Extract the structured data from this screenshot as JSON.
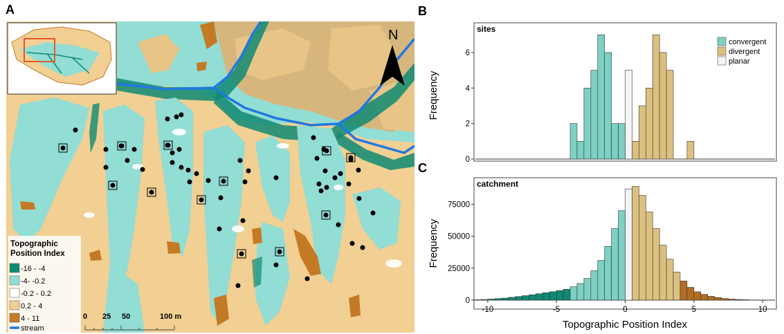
{
  "panels": {
    "a": "A",
    "b": "B",
    "c": "C"
  },
  "map": {
    "north_label": "N",
    "legend": {
      "title_line1": "Topographic",
      "title_line2": "Position Index",
      "items": [
        {
          "label": "-16 - -4",
          "color": "#0f8a73"
        },
        {
          "label": "-4- -0.2",
          "color": "#92ddd4"
        },
        {
          "label": "-0.2 - 0.2",
          "color": "#ffffff"
        },
        {
          "label": "0.2 - 4",
          "color": "#f2cf93"
        },
        {
          "label": "4 - 11",
          "color": "#c47a24"
        }
      ],
      "stream_label": "stream",
      "stream_color": "#1f78e0"
    },
    "scale_bar": {
      "labels": [
        "0",
        "25",
        "50",
        "100 m"
      ]
    }
  },
  "colors": {
    "convergent": "#7dd0c4",
    "divergent": "#dcc07f",
    "planar": "#f4f4f4",
    "deep_convergent": "#0f8a73",
    "strong_divergent": "#b06d23"
  },
  "chart_data": [
    {
      "type": "bar",
      "title": "sites",
      "ylabel": "Frequency",
      "xlim": [
        -11,
        11
      ],
      "ylim": [
        0,
        7.4
      ],
      "yticks": [
        0,
        2,
        4,
        6
      ],
      "bin_width": 0.5,
      "legend": {
        "position": "top-right",
        "entries": [
          "convergent",
          "divergent",
          "planar"
        ]
      },
      "bins": [
        {
          "x0": -4.0,
          "count": 2,
          "class": "convergent"
        },
        {
          "x0": -3.5,
          "count": 1,
          "class": "convergent"
        },
        {
          "x0": -3.0,
          "count": 4,
          "class": "convergent"
        },
        {
          "x0": -2.5,
          "count": 5,
          "class": "convergent"
        },
        {
          "x0": -2.0,
          "count": 7,
          "class": "convergent"
        },
        {
          "x0": -1.5,
          "count": 6,
          "class": "convergent"
        },
        {
          "x0": -1.0,
          "count": 2,
          "class": "convergent"
        },
        {
          "x0": -0.5,
          "count": 2,
          "class": "convergent"
        },
        {
          "x0": 0.0,
          "count": 5,
          "class": "planar"
        },
        {
          "x0": 0.5,
          "count": 1,
          "class": "divergent"
        },
        {
          "x0": 1.0,
          "count": 3,
          "class": "divergent"
        },
        {
          "x0": 1.5,
          "count": 4,
          "class": "divergent"
        },
        {
          "x0": 2.0,
          "count": 7,
          "class": "divergent"
        },
        {
          "x0": 2.5,
          "count": 6,
          "class": "divergent"
        },
        {
          "x0": 3.0,
          "count": 5,
          "class": "divergent"
        },
        {
          "x0": 4.5,
          "count": 1,
          "class": "divergent"
        }
      ],
      "baseline_range": [
        -10.9,
        10.9
      ]
    },
    {
      "type": "bar",
      "title": "catchment",
      "xlabel": "Topographic Position Index",
      "ylabel": "Frequency",
      "xlim": [
        -11,
        11
      ],
      "ylim": [
        0,
        92000
      ],
      "xticks": [
        -10,
        -5,
        0,
        5,
        10
      ],
      "yticks": [
        0,
        25000,
        50000,
        75000
      ],
      "bin_width": 0.5,
      "bins": [
        {
          "x0": -11.0,
          "count": 300,
          "class": "deep_convergent"
        },
        {
          "x0": -10.5,
          "count": 500,
          "class": "deep_convergent"
        },
        {
          "x0": -10.0,
          "count": 800,
          "class": "deep_convergent"
        },
        {
          "x0": -9.5,
          "count": 1200,
          "class": "deep_convergent"
        },
        {
          "x0": -9.0,
          "count": 1600,
          "class": "deep_convergent"
        },
        {
          "x0": -8.5,
          "count": 2200,
          "class": "deep_convergent"
        },
        {
          "x0": -8.0,
          "count": 2800,
          "class": "deep_convergent"
        },
        {
          "x0": -7.5,
          "count": 3500,
          "class": "deep_convergent"
        },
        {
          "x0": -7.0,
          "count": 4200,
          "class": "deep_convergent"
        },
        {
          "x0": -6.5,
          "count": 5000,
          "class": "deep_convergent"
        },
        {
          "x0": -6.0,
          "count": 5800,
          "class": "deep_convergent"
        },
        {
          "x0": -5.5,
          "count": 6600,
          "class": "deep_convergent"
        },
        {
          "x0": -5.0,
          "count": 7500,
          "class": "deep_convergent"
        },
        {
          "x0": -4.5,
          "count": 8500,
          "class": "deep_convergent"
        },
        {
          "x0": -4.0,
          "count": 10500,
          "class": "convergent"
        },
        {
          "x0": -3.5,
          "count": 13000,
          "class": "convergent"
        },
        {
          "x0": -3.0,
          "count": 17000,
          "class": "convergent"
        },
        {
          "x0": -2.5,
          "count": 23000,
          "class": "convergent"
        },
        {
          "x0": -2.0,
          "count": 31000,
          "class": "convergent"
        },
        {
          "x0": -1.5,
          "count": 42000,
          "class": "convergent"
        },
        {
          "x0": -1.0,
          "count": 56000,
          "class": "convergent"
        },
        {
          "x0": -0.5,
          "count": 70000,
          "class": "convergent"
        },
        {
          "x0": 0.0,
          "count": 87000,
          "class": "planar"
        },
        {
          "x0": 0.5,
          "count": 89000,
          "class": "divergent"
        },
        {
          "x0": 1.0,
          "count": 82000,
          "class": "divergent"
        },
        {
          "x0": 1.5,
          "count": 69000,
          "class": "divergent"
        },
        {
          "x0": 2.0,
          "count": 56000,
          "class": "divergent"
        },
        {
          "x0": 2.5,
          "count": 43000,
          "class": "divergent"
        },
        {
          "x0": 3.0,
          "count": 32000,
          "class": "divergent"
        },
        {
          "x0": 3.5,
          "count": 22000,
          "class": "divergent"
        },
        {
          "x0": 4.0,
          "count": 15000,
          "class": "strong_divergent"
        },
        {
          "x0": 4.5,
          "count": 10000,
          "class": "strong_divergent"
        },
        {
          "x0": 5.0,
          "count": 6500,
          "class": "strong_divergent"
        },
        {
          "x0": 5.5,
          "count": 4500,
          "class": "strong_divergent"
        },
        {
          "x0": 6.0,
          "count": 3000,
          "class": "strong_divergent"
        },
        {
          "x0": 6.5,
          "count": 2000,
          "class": "strong_divergent"
        },
        {
          "x0": 7.0,
          "count": 1300,
          "class": "strong_divergent"
        },
        {
          "x0": 7.5,
          "count": 800,
          "class": "strong_divergent"
        },
        {
          "x0": 8.0,
          "count": 500,
          "class": "strong_divergent"
        },
        {
          "x0": 8.5,
          "count": 300,
          "class": "strong_divergent"
        }
      ],
      "baseline_range": [
        -10.9,
        10.9
      ]
    }
  ]
}
